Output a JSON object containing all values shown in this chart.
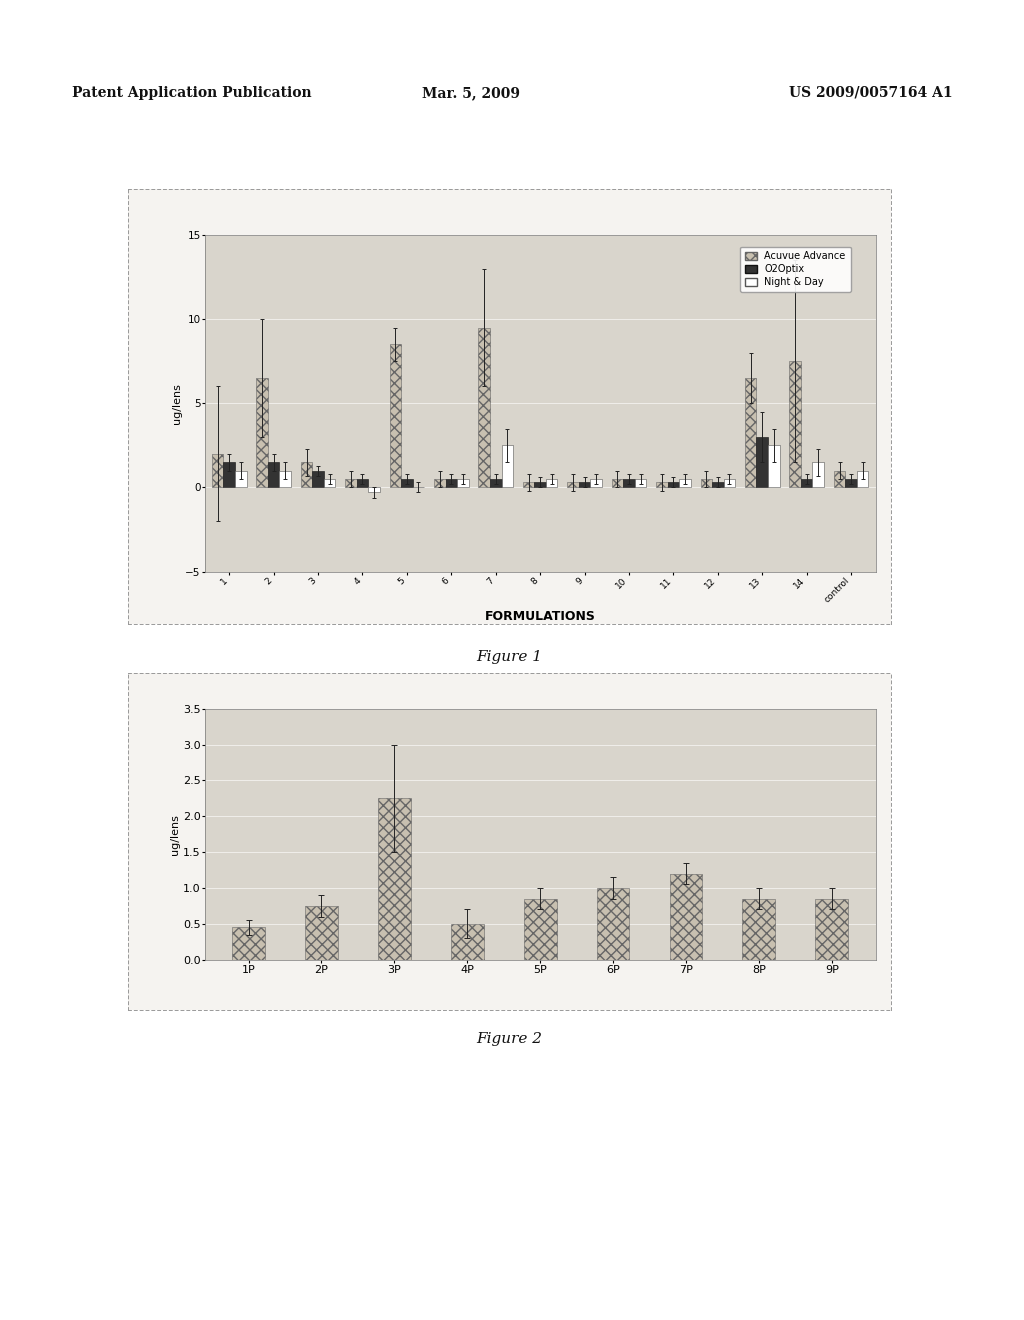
{
  "fig1": {
    "categories": [
      "1",
      "2",
      "3",
      "4",
      "5",
      "6",
      "7",
      "8",
      "9",
      "10",
      "11",
      "12",
      "13",
      "14",
      "control"
    ],
    "acuvue": [
      2.0,
      6.5,
      1.5,
      0.5,
      8.5,
      0.5,
      9.5,
      0.3,
      0.3,
      0.5,
      0.3,
      0.5,
      6.5,
      7.5,
      1.0
    ],
    "o2optix": [
      1.5,
      1.5,
      1.0,
      0.5,
      0.5,
      0.5,
      0.5,
      0.3,
      0.3,
      0.5,
      0.3,
      0.3,
      3.0,
      0.5,
      0.5
    ],
    "nightday": [
      1.0,
      1.0,
      0.5,
      -0.3,
      0.0,
      0.5,
      2.5,
      0.5,
      0.5,
      0.5,
      0.5,
      0.5,
      2.5,
      1.5,
      1.0
    ],
    "acuvue_err": [
      4.0,
      3.5,
      0.8,
      0.5,
      1.0,
      0.5,
      3.5,
      0.5,
      0.5,
      0.5,
      0.5,
      0.5,
      1.5,
      6.0,
      0.5
    ],
    "o2optix_err": [
      0.5,
      0.5,
      0.3,
      0.3,
      0.3,
      0.3,
      0.3,
      0.3,
      0.3,
      0.3,
      0.3,
      0.3,
      1.5,
      0.3,
      0.3
    ],
    "nightday_err": [
      0.5,
      0.5,
      0.3,
      0.3,
      0.3,
      0.3,
      1.0,
      0.3,
      0.3,
      0.3,
      0.3,
      0.3,
      1.0,
      0.8,
      0.5
    ],
    "ylabel": "ug/lens",
    "xlabel": "FORMULATIONS",
    "ylim": [
      -5,
      15
    ],
    "yticks": [
      -5,
      0,
      5,
      10,
      15
    ],
    "figure_label": "Figure 1",
    "legend_labels": [
      "Acuvue Advance",
      "O2Optix",
      "Night & Day"
    ]
  },
  "fig2": {
    "categories": [
      "1P",
      "2P",
      "3P",
      "4P",
      "5P",
      "6P",
      "7P",
      "8P",
      "9P"
    ],
    "values": [
      0.45,
      0.75,
      2.25,
      0.5,
      0.85,
      1.0,
      1.2,
      0.85,
      0.85
    ],
    "errors": [
      0.1,
      0.15,
      0.75,
      0.2,
      0.15,
      0.15,
      0.15,
      0.15,
      0.15
    ],
    "ylabel": "ug/lens",
    "ylim": [
      0,
      3.5
    ],
    "yticks": [
      0,
      0.5,
      1.0,
      1.5,
      2.0,
      2.5,
      3.0,
      3.5
    ],
    "figure_label": "Figure 2"
  },
  "header_left": "Patent Application Publication",
  "header_center": "Mar. 5, 2009",
  "header_right": "US 2009/0057164 A1",
  "page_bg": "#ffffff",
  "outer_bg": "#f5f3f0",
  "plot_bg": "#d9d5cc",
  "border_color": "#aaaaaa"
}
